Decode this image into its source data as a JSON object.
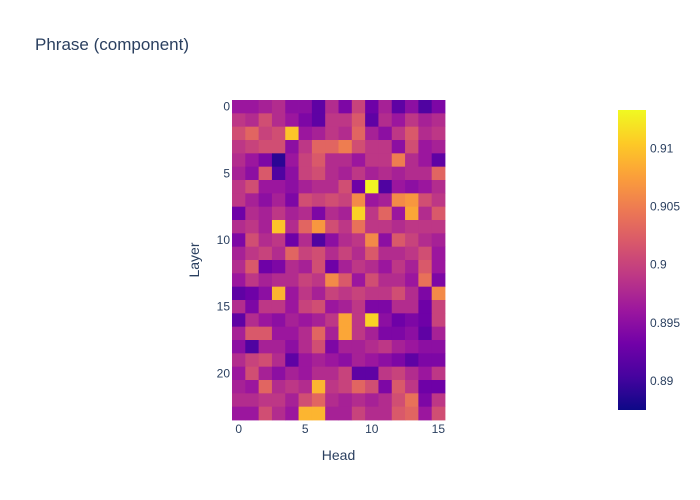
{
  "chart_data": {
    "type": "heatmap",
    "title": "Phrase (component)",
    "xlabel": "Head",
    "ylabel": "Layer",
    "n_cols": 16,
    "n_rows": 24,
    "x_ticks": [
      0,
      5,
      10,
      15
    ],
    "y_ticks": [
      0,
      5,
      10,
      15,
      20
    ],
    "y_reversed": true,
    "colorbar": {
      "min": 0.8875,
      "max": 0.9133,
      "ticks": [
        0.89,
        0.895,
        0.9,
        0.905,
        0.91
      ],
      "tick_labels": [
        "0.89",
        "0.895",
        "0.9",
        "0.905",
        "0.91"
      ],
      "colorscale": [
        "#0d0887",
        "#46039f",
        "#7201a8",
        "#9c179e",
        "#bd3786",
        "#d8576b",
        "#ed7953",
        "#fb9f3a",
        "#fdca26",
        "#f0f921"
      ]
    },
    "values": [
      [
        0.896,
        0.896,
        0.897,
        0.898,
        0.895,
        0.895,
        0.892,
        0.898,
        0.894,
        0.9,
        0.893,
        0.897,
        0.892,
        0.895,
        0.891,
        0.894
      ],
      [
        0.899,
        0.898,
        0.901,
        0.898,
        0.896,
        0.894,
        0.892,
        0.899,
        0.899,
        0.902,
        0.892,
        0.898,
        0.896,
        0.899,
        0.897,
        0.898
      ],
      [
        0.901,
        0.903,
        0.9,
        0.901,
        0.91,
        0.896,
        0.897,
        0.899,
        0.898,
        0.903,
        0.897,
        0.895,
        0.899,
        0.902,
        0.898,
        0.899
      ],
      [
        0.899,
        0.9,
        0.901,
        0.901,
        0.895,
        0.899,
        0.903,
        0.903,
        0.905,
        0.901,
        0.899,
        0.899,
        0.895,
        0.901,
        0.896,
        0.897
      ],
      [
        0.898,
        0.896,
        0.894,
        0.889,
        0.896,
        0.9,
        0.902,
        0.898,
        0.898,
        0.896,
        0.899,
        0.899,
        0.905,
        0.898,
        0.896,
        0.892
      ],
      [
        0.897,
        0.895,
        0.902,
        0.891,
        0.895,
        0.9,
        0.901,
        0.898,
        0.897,
        0.899,
        0.897,
        0.898,
        0.897,
        0.898,
        0.898,
        0.903
      ],
      [
        0.899,
        0.901,
        0.896,
        0.896,
        0.895,
        0.897,
        0.898,
        0.898,
        0.901,
        0.893,
        0.913,
        0.891,
        0.896,
        0.895,
        0.896,
        0.898
      ],
      [
        0.899,
        0.897,
        0.895,
        0.897,
        0.894,
        0.901,
        0.9,
        0.901,
        0.9,
        0.906,
        0.896,
        0.897,
        0.906,
        0.907,
        0.901,
        0.899
      ],
      [
        0.893,
        0.898,
        0.897,
        0.899,
        0.897,
        0.898,
        0.894,
        0.898,
        0.897,
        0.911,
        0.899,
        0.903,
        0.896,
        0.908,
        0.898,
        0.902
      ],
      [
        0.898,
        0.899,
        0.897,
        0.91,
        0.898,
        0.903,
        0.907,
        0.901,
        0.899,
        0.904,
        0.899,
        0.899,
        0.898,
        0.899,
        0.899,
        0.899
      ],
      [
        0.894,
        0.901,
        0.898,
        0.899,
        0.893,
        0.898,
        0.891,
        0.895,
        0.898,
        0.899,
        0.906,
        0.895,
        0.902,
        0.9,
        0.898,
        0.897
      ],
      [
        0.897,
        0.899,
        0.9,
        0.898,
        0.903,
        0.9,
        0.901,
        0.898,
        0.9,
        0.898,
        0.902,
        0.898,
        0.898,
        0.899,
        0.901,
        0.896
      ],
      [
        0.898,
        0.902,
        0.893,
        0.894,
        0.898,
        0.897,
        0.901,
        0.893,
        0.897,
        0.899,
        0.898,
        0.896,
        0.899,
        0.897,
        0.902,
        0.896
      ],
      [
        0.896,
        0.899,
        0.897,
        0.898,
        0.898,
        0.9,
        0.899,
        0.906,
        0.902,
        0.896,
        0.901,
        0.898,
        0.898,
        0.896,
        0.904,
        0.894
      ],
      [
        0.892,
        0.893,
        0.895,
        0.909,
        0.896,
        0.899,
        0.897,
        0.9,
        0.899,
        0.9,
        0.899,
        0.899,
        0.901,
        0.898,
        0.894,
        0.906
      ],
      [
        0.898,
        0.894,
        0.899,
        0.899,
        0.896,
        0.9,
        0.901,
        0.896,
        0.897,
        0.899,
        0.894,
        0.894,
        0.898,
        0.898,
        0.893,
        0.9
      ],
      [
        0.892,
        0.898,
        0.896,
        0.895,
        0.897,
        0.896,
        0.897,
        0.899,
        0.908,
        0.899,
        0.911,
        0.895,
        0.893,
        0.894,
        0.893,
        0.9
      ],
      [
        0.897,
        0.902,
        0.902,
        0.896,
        0.896,
        0.898,
        0.903,
        0.897,
        0.908,
        0.899,
        0.897,
        0.894,
        0.894,
        0.895,
        0.892,
        0.897
      ],
      [
        0.895,
        0.891,
        0.897,
        0.897,
        0.895,
        0.898,
        0.901,
        0.894,
        0.897,
        0.897,
        0.898,
        0.899,
        0.897,
        0.896,
        0.895,
        0.895
      ],
      [
        0.898,
        0.9,
        0.901,
        0.898,
        0.892,
        0.896,
        0.897,
        0.896,
        0.895,
        0.897,
        0.896,
        0.895,
        0.894,
        0.892,
        0.894,
        0.894
      ],
      [
        0.896,
        0.901,
        0.897,
        0.895,
        0.897,
        0.896,
        0.898,
        0.898,
        0.9,
        0.892,
        0.892,
        0.899,
        0.9,
        0.898,
        0.896,
        0.899
      ],
      [
        0.897,
        0.896,
        0.903,
        0.898,
        0.899,
        0.898,
        0.909,
        0.899,
        0.9,
        0.903,
        0.901,
        0.894,
        0.902,
        0.899,
        0.893,
        0.893
      ],
      [
        0.898,
        0.898,
        0.899,
        0.899,
        0.897,
        0.901,
        0.903,
        0.898,
        0.897,
        0.898,
        0.897,
        0.898,
        0.901,
        0.904,
        0.894,
        0.899
      ],
      [
        0.896,
        0.896,
        0.901,
        0.898,
        0.896,
        0.909,
        0.909,
        0.897,
        0.897,
        0.9,
        0.898,
        0.898,
        0.902,
        0.903,
        0.896,
        0.901
      ]
    ]
  }
}
